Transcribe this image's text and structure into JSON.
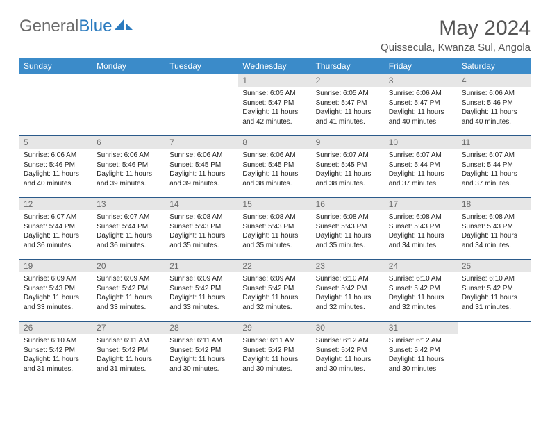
{
  "logo": {
    "text1": "General",
    "text2": "Blue"
  },
  "title": "May 2024",
  "location": "Quissecula, Kwanza Sul, Angola",
  "header_bg": "#3b8bc9",
  "border_color": "#2b5a8a",
  "daynum_bg": "#e6e6e6",
  "weekdays": [
    "Sunday",
    "Monday",
    "Tuesday",
    "Wednesday",
    "Thursday",
    "Friday",
    "Saturday"
  ],
  "weeks": [
    [
      {
        "n": "",
        "sr": "",
        "ss": "",
        "dl": ""
      },
      {
        "n": "",
        "sr": "",
        "ss": "",
        "dl": ""
      },
      {
        "n": "",
        "sr": "",
        "ss": "",
        "dl": ""
      },
      {
        "n": "1",
        "sr": "6:05 AM",
        "ss": "5:47 PM",
        "dl": "11 hours and 42 minutes."
      },
      {
        "n": "2",
        "sr": "6:05 AM",
        "ss": "5:47 PM",
        "dl": "11 hours and 41 minutes."
      },
      {
        "n": "3",
        "sr": "6:06 AM",
        "ss": "5:47 PM",
        "dl": "11 hours and 40 minutes."
      },
      {
        "n": "4",
        "sr": "6:06 AM",
        "ss": "5:46 PM",
        "dl": "11 hours and 40 minutes."
      }
    ],
    [
      {
        "n": "5",
        "sr": "6:06 AM",
        "ss": "5:46 PM",
        "dl": "11 hours and 40 minutes."
      },
      {
        "n": "6",
        "sr": "6:06 AM",
        "ss": "5:46 PM",
        "dl": "11 hours and 39 minutes."
      },
      {
        "n": "7",
        "sr": "6:06 AM",
        "ss": "5:45 PM",
        "dl": "11 hours and 39 minutes."
      },
      {
        "n": "8",
        "sr": "6:06 AM",
        "ss": "5:45 PM",
        "dl": "11 hours and 38 minutes."
      },
      {
        "n": "9",
        "sr": "6:07 AM",
        "ss": "5:45 PM",
        "dl": "11 hours and 38 minutes."
      },
      {
        "n": "10",
        "sr": "6:07 AM",
        "ss": "5:44 PM",
        "dl": "11 hours and 37 minutes."
      },
      {
        "n": "11",
        "sr": "6:07 AM",
        "ss": "5:44 PM",
        "dl": "11 hours and 37 minutes."
      }
    ],
    [
      {
        "n": "12",
        "sr": "6:07 AM",
        "ss": "5:44 PM",
        "dl": "11 hours and 36 minutes."
      },
      {
        "n": "13",
        "sr": "6:07 AM",
        "ss": "5:44 PM",
        "dl": "11 hours and 36 minutes."
      },
      {
        "n": "14",
        "sr": "6:08 AM",
        "ss": "5:43 PM",
        "dl": "11 hours and 35 minutes."
      },
      {
        "n": "15",
        "sr": "6:08 AM",
        "ss": "5:43 PM",
        "dl": "11 hours and 35 minutes."
      },
      {
        "n": "16",
        "sr": "6:08 AM",
        "ss": "5:43 PM",
        "dl": "11 hours and 35 minutes."
      },
      {
        "n": "17",
        "sr": "6:08 AM",
        "ss": "5:43 PM",
        "dl": "11 hours and 34 minutes."
      },
      {
        "n": "18",
        "sr": "6:08 AM",
        "ss": "5:43 PM",
        "dl": "11 hours and 34 minutes."
      }
    ],
    [
      {
        "n": "19",
        "sr": "6:09 AM",
        "ss": "5:43 PM",
        "dl": "11 hours and 33 minutes."
      },
      {
        "n": "20",
        "sr": "6:09 AM",
        "ss": "5:42 PM",
        "dl": "11 hours and 33 minutes."
      },
      {
        "n": "21",
        "sr": "6:09 AM",
        "ss": "5:42 PM",
        "dl": "11 hours and 33 minutes."
      },
      {
        "n": "22",
        "sr": "6:09 AM",
        "ss": "5:42 PM",
        "dl": "11 hours and 32 minutes."
      },
      {
        "n": "23",
        "sr": "6:10 AM",
        "ss": "5:42 PM",
        "dl": "11 hours and 32 minutes."
      },
      {
        "n": "24",
        "sr": "6:10 AM",
        "ss": "5:42 PM",
        "dl": "11 hours and 32 minutes."
      },
      {
        "n": "25",
        "sr": "6:10 AM",
        "ss": "5:42 PM",
        "dl": "11 hours and 31 minutes."
      }
    ],
    [
      {
        "n": "26",
        "sr": "6:10 AM",
        "ss": "5:42 PM",
        "dl": "11 hours and 31 minutes."
      },
      {
        "n": "27",
        "sr": "6:11 AM",
        "ss": "5:42 PM",
        "dl": "11 hours and 31 minutes."
      },
      {
        "n": "28",
        "sr": "6:11 AM",
        "ss": "5:42 PM",
        "dl": "11 hours and 30 minutes."
      },
      {
        "n": "29",
        "sr": "6:11 AM",
        "ss": "5:42 PM",
        "dl": "11 hours and 30 minutes."
      },
      {
        "n": "30",
        "sr": "6:12 AM",
        "ss": "5:42 PM",
        "dl": "11 hours and 30 minutes."
      },
      {
        "n": "31",
        "sr": "6:12 AM",
        "ss": "5:42 PM",
        "dl": "11 hours and 30 minutes."
      },
      {
        "n": "",
        "sr": "",
        "ss": "",
        "dl": ""
      }
    ]
  ]
}
